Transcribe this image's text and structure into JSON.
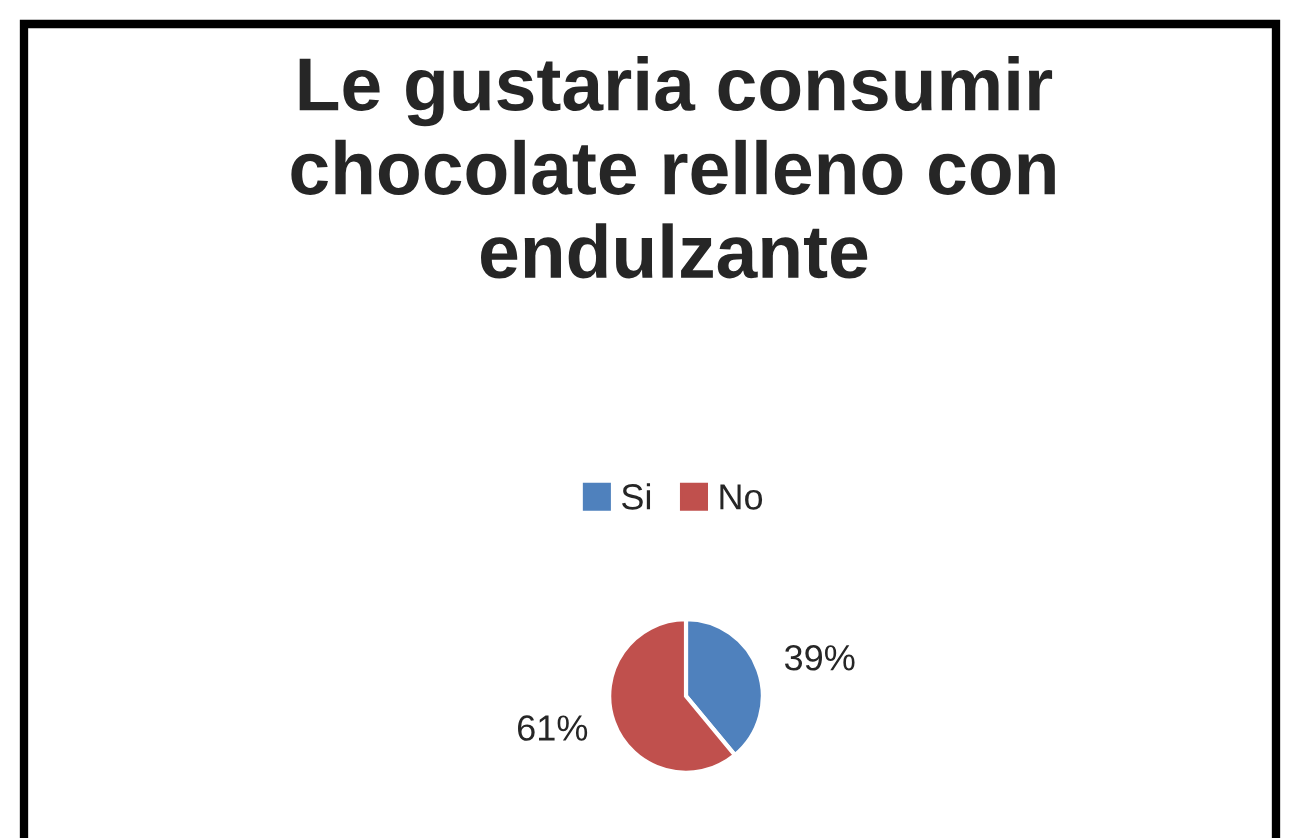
{
  "chart_data": {
    "type": "pie",
    "title": "Le gustaria consumir\nchocolate relleno con\nendulzante",
    "categories": [
      "Si",
      "No"
    ],
    "values": [
      39,
      61
    ],
    "colors": [
      "#4f81bd",
      "#c0504d"
    ],
    "value_labels": [
      "39%",
      "61%"
    ],
    "legend": "top"
  }
}
